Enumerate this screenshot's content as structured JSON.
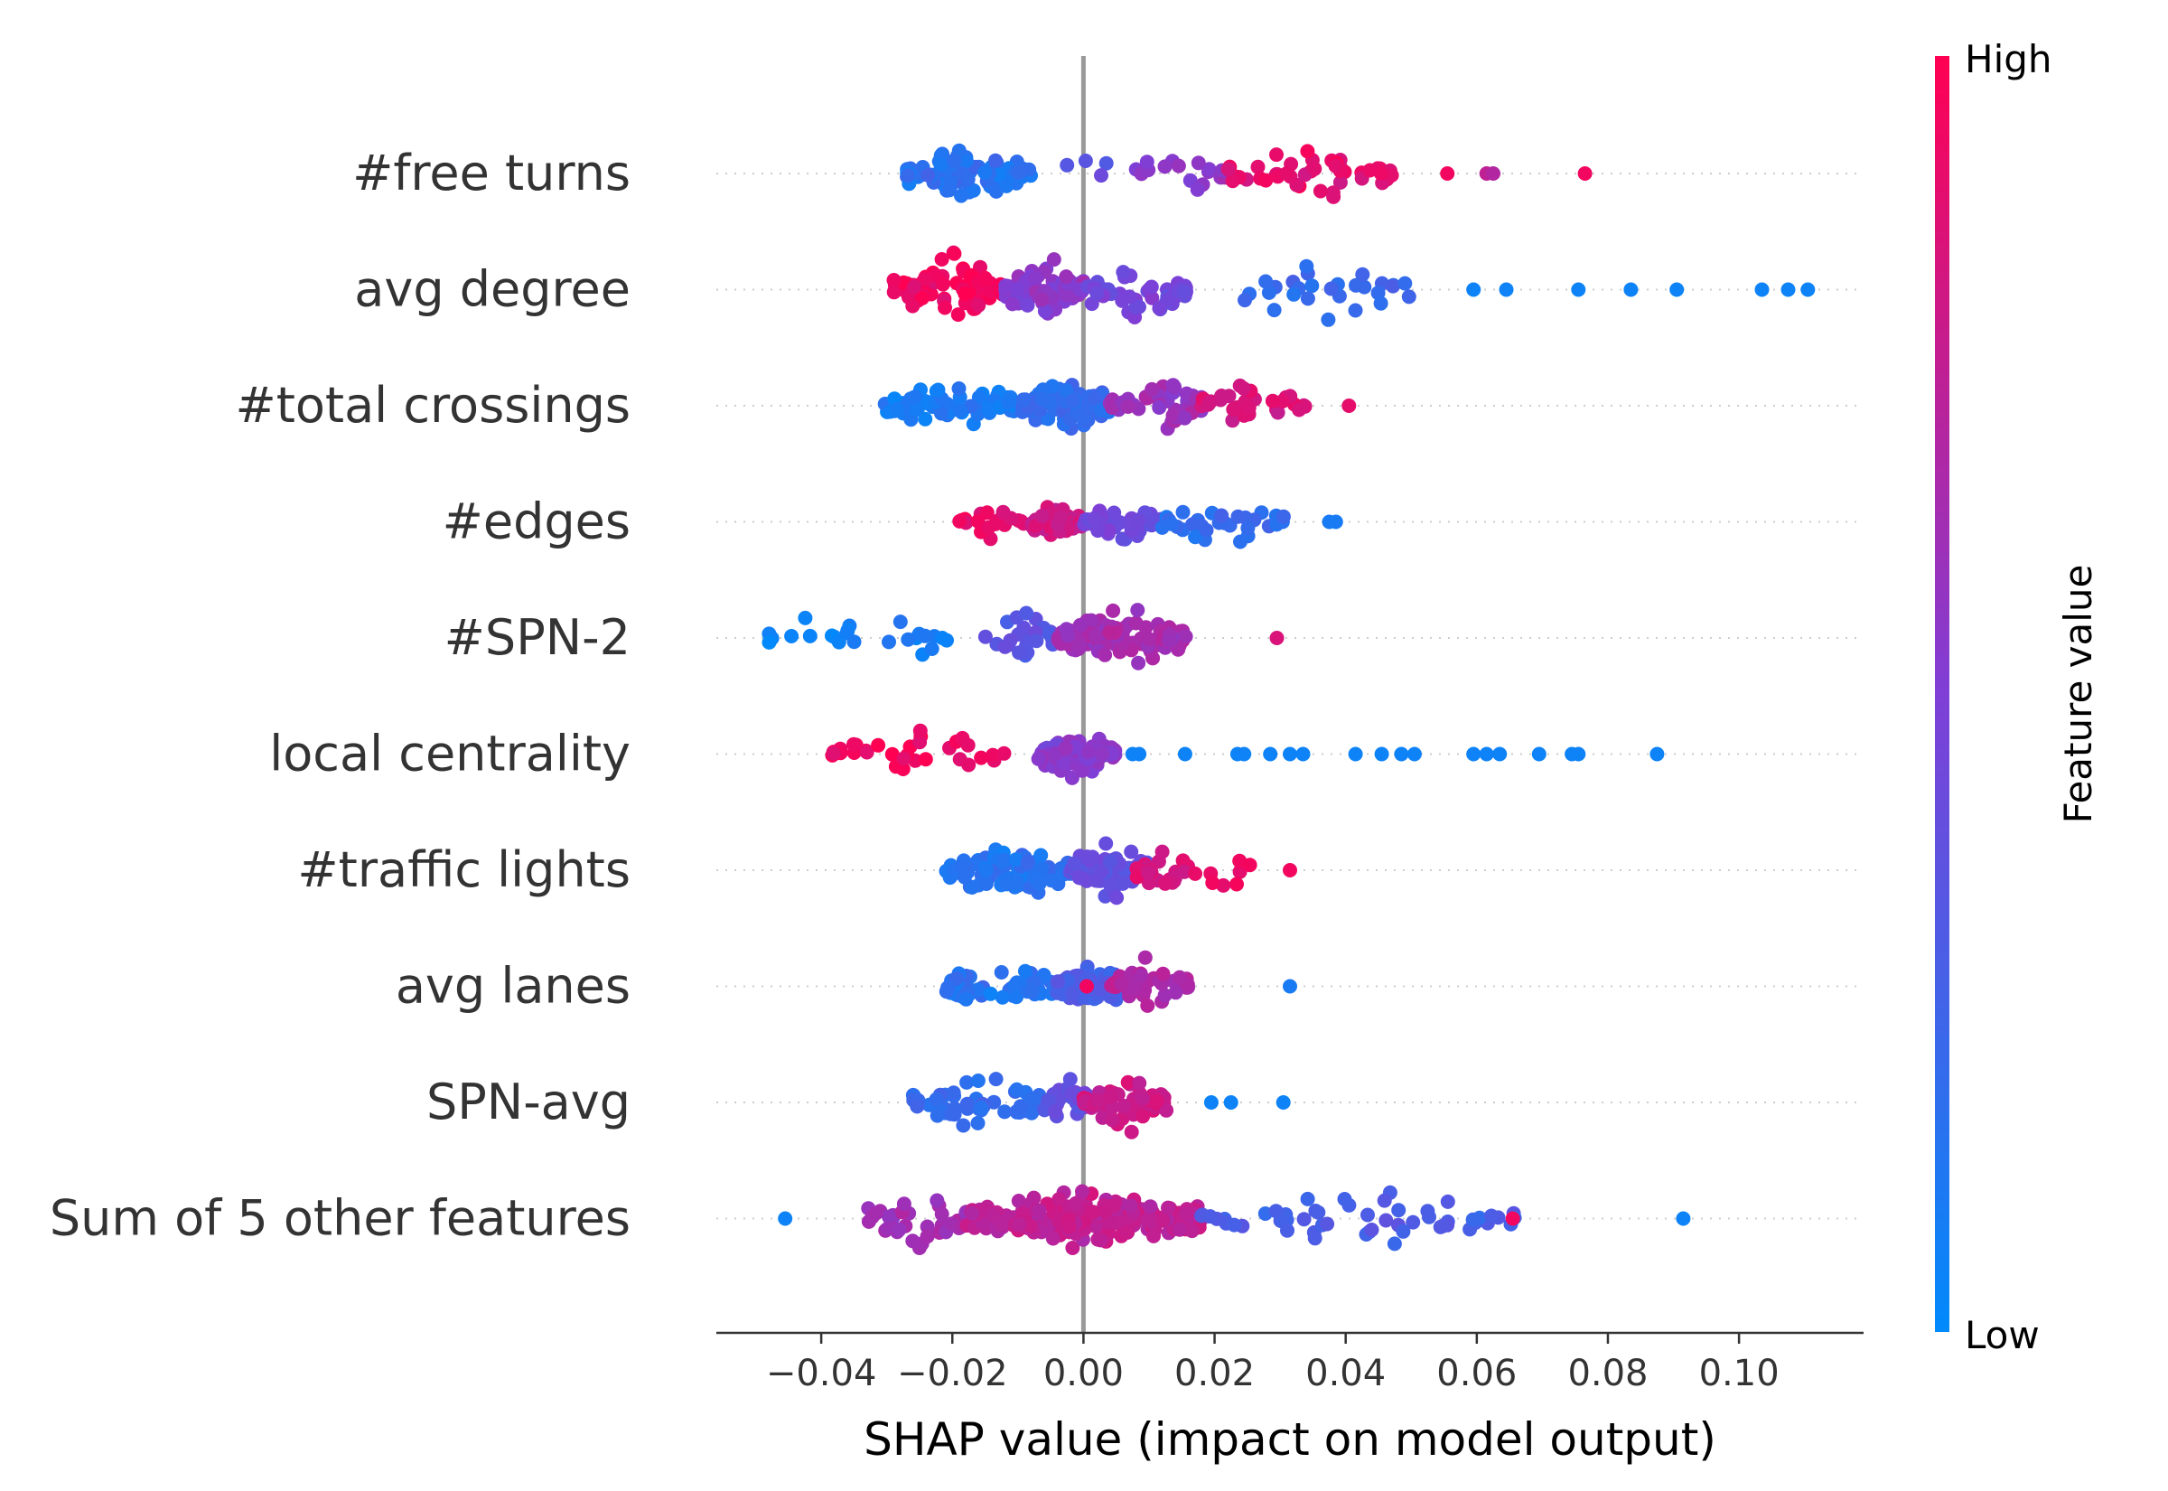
{
  "chart_data": {
    "type": "scatter",
    "subtype": "shap-beeswarm",
    "title": "",
    "xlabel": "SHAP value (impact on model output)",
    "ylabel": "",
    "xlim": [
      -0.056,
      0.119
    ],
    "x_ticks": [
      -0.04,
      -0.02,
      0.0,
      0.02,
      0.04,
      0.06,
      0.08,
      0.1
    ],
    "x_tick_labels": [
      "−0.04",
      "−0.02",
      "0.00",
      "0.02",
      "0.04",
      "0.06",
      "0.08",
      "0.10"
    ],
    "features": [
      {
        "name": "#free turns",
        "ranges": [
          [
            -0.027,
            -0.008,
            0.15,
            90
          ],
          [
            -0.007,
            0.007,
            0.35,
            4
          ],
          [
            0.008,
            0.022,
            0.55,
            18
          ],
          [
            0.022,
            0.048,
            0.9,
            45
          ]
        ],
        "spread": 0.016,
        "points": [
          [
            0.031,
            0.9
          ],
          [
            0.0555,
            0.95
          ],
          [
            0.0615,
            0.75
          ],
          [
            0.0625,
            0.7
          ],
          [
            0.0765,
            0.95
          ]
        ]
      },
      {
        "name": "avg degree",
        "ranges": [
          [
            -0.029,
            -0.012,
            0.95,
            80
          ],
          [
            -0.012,
            0.0,
            0.55,
            90
          ],
          [
            0.0,
            0.016,
            0.45,
            45
          ],
          [
            0.016,
            0.05,
            0.2,
            28
          ]
        ],
        "spread": 0.018,
        "points": [
          [
            0.0595,
            0.05
          ],
          [
            0.0645,
            0.05
          ],
          [
            0.0755,
            0.05
          ],
          [
            0.0835,
            0.05
          ],
          [
            0.0905,
            0.05
          ],
          [
            0.1035,
            0.05
          ],
          [
            0.1075,
            0.05
          ],
          [
            0.1105,
            0.05
          ]
        ]
      },
      {
        "name": "#total crossings",
        "ranges": [
          [
            -0.031,
            -0.01,
            0.1,
            70
          ],
          [
            -0.01,
            0.004,
            0.2,
            85
          ],
          [
            0.004,
            0.018,
            0.6,
            45
          ],
          [
            0.018,
            0.034,
            0.85,
            30
          ]
        ],
        "spread": 0.015,
        "points": [
          [
            0.0405,
            0.9
          ]
        ]
      },
      {
        "name": "#edges",
        "ranges": [
          [
            -0.019,
            -0.008,
            0.9,
            20
          ],
          [
            -0.008,
            0.0,
            0.8,
            55
          ],
          [
            0.0,
            0.012,
            0.45,
            45
          ],
          [
            0.012,
            0.031,
            0.2,
            30
          ]
        ],
        "spread": 0.012,
        "points": [
          [
            0.0375,
            0.1
          ],
          [
            0.0385,
            0.1
          ]
        ]
      },
      {
        "name": "#SPN-2",
        "ranges": [
          [
            -0.048,
            -0.038,
            0.05,
            8
          ],
          [
            -0.038,
            -0.02,
            0.1,
            16
          ],
          [
            -0.015,
            -0.004,
            0.35,
            25
          ],
          [
            -0.004,
            0.016,
            0.65,
            120
          ]
        ],
        "spread": 0.015,
        "points": [
          [
            0.0295,
            0.85
          ]
        ]
      },
      {
        "name": "local centrality",
        "ranges": [
          [
            -0.039,
            -0.012,
            0.95,
            32
          ],
          [
            -0.007,
            0.005,
            0.55,
            80
          ]
        ],
        "spread": 0.014,
        "points": [
          [
            0.0075,
            0.05
          ],
          [
            0.0085,
            0.05
          ],
          [
            0.0155,
            0.05
          ],
          [
            0.0235,
            0.05
          ],
          [
            0.0245,
            0.05
          ],
          [
            0.0285,
            0.05
          ],
          [
            0.0315,
            0.05
          ],
          [
            0.0335,
            0.05
          ],
          [
            0.0415,
            0.05
          ],
          [
            0.0455,
            0.05
          ],
          [
            0.0485,
            0.05
          ],
          [
            0.0505,
            0.05
          ],
          [
            0.0595,
            0.05
          ],
          [
            0.0615,
            0.05
          ],
          [
            0.0635,
            0.05
          ],
          [
            0.0695,
            0.05
          ],
          [
            0.0745,
            0.05
          ],
          [
            0.0755,
            0.05
          ],
          [
            0.0875,
            0.05
          ]
        ]
      },
      {
        "name": "#traffic lights",
        "ranges": [
          [
            -0.021,
            -0.002,
            0.15,
            100
          ],
          [
            -0.002,
            0.01,
            0.4,
            70
          ],
          [
            0.008,
            0.016,
            0.85,
            25
          ],
          [
            0.017,
            0.026,
            0.95,
            8
          ]
        ],
        "spread": 0.015,
        "points": [
          [
            0.0315,
            0.95
          ]
        ]
      },
      {
        "name": "avg lanes",
        "ranges": [
          [
            -0.021,
            -0.004,
            0.15,
            60
          ],
          [
            -0.004,
            0.006,
            0.3,
            80
          ],
          [
            0.004,
            0.016,
            0.7,
            40
          ]
        ],
        "spread": 0.015,
        "points": [
          [
            0.0315,
            0.1
          ],
          [
            0.0005,
            0.95
          ]
        ]
      },
      {
        "name": "SPN-avg",
        "ranges": [
          [
            -0.026,
            -0.005,
            0.2,
            55
          ],
          [
            -0.006,
            0.002,
            0.4,
            30
          ],
          [
            0.0,
            0.013,
            0.8,
            70
          ]
        ],
        "spread": 0.014,
        "points": [
          [
            0.0195,
            0.05
          ],
          [
            0.0225,
            0.05
          ],
          [
            0.0305,
            0.05
          ]
        ]
      },
      {
        "name": "Sum of 5 other features",
        "ranges": [
          [
            -0.033,
            -0.015,
            0.65,
            40
          ],
          [
            -0.018,
            0.018,
            0.75,
            230
          ],
          [
            0.018,
            0.066,
            0.3,
            55
          ]
        ],
        "spread": 0.017,
        "points": [
          [
            -0.0455,
            0.05
          ],
          [
            0.0915,
            0.05
          ],
          [
            0.0655,
            0.95
          ]
        ]
      }
    ],
    "colorbar": {
      "label": "Feature value",
      "high_label": "High",
      "low_label": "Low",
      "low_color": "#008afb",
      "mid_color": "#7f3fd6",
      "high_color": "#ff0052"
    },
    "grid": false,
    "legend": "right"
  }
}
